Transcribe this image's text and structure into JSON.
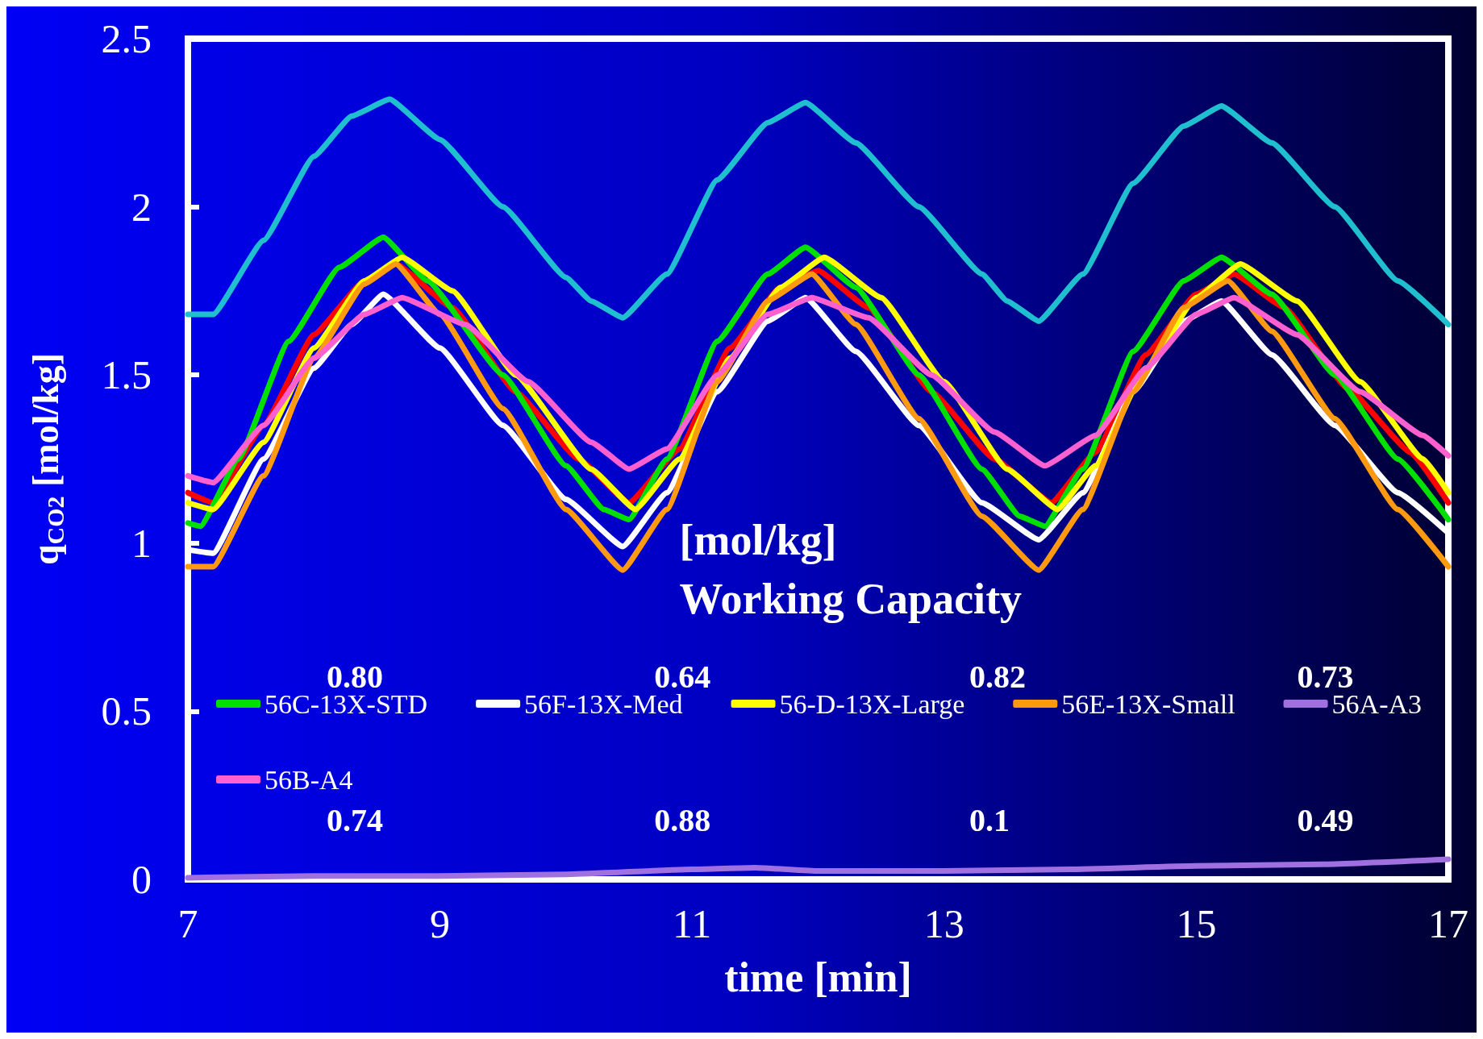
{
  "chart_data": {
    "type": "line",
    "xlabel": "time [min]",
    "ylabel": "q$_{CO2}$ [mol/kg]",
    "xlim": [
      7,
      17
    ],
    "xticks": [
      7,
      9,
      11,
      13,
      15,
      17
    ],
    "ylim": [
      0,
      2.5
    ],
    "yticks": [
      0,
      0.5,
      1,
      1.5,
      2,
      2.5
    ],
    "grid": false,
    "legend": "bottom",
    "marker": "none",
    "line_style": "solid",
    "annotations": [
      "[mol/kg]",
      "Working Capacity",
      "0.80",
      "0.64",
      "0.82",
      "0.73",
      "0.74",
      "0.88",
      "0.1",
      "0.49"
    ],
    "series": [
      {
        "color": "#ff0000",
        "x": [
          7,
          7.2,
          7.6,
          8.0,
          8.4,
          8.65,
          9.1,
          9.6,
          10.1,
          10.5,
          10.9,
          11.3,
          11.7,
          12.0,
          12.4,
          12.9,
          13.4,
          13.85,
          14.2,
          14.6,
          15.0,
          15.3,
          15.7,
          16.2,
          16.7,
          17
        ],
        "values": [
          1.15,
          1.12,
          1.35,
          1.62,
          1.78,
          1.83,
          1.7,
          1.45,
          1.25,
          1.12,
          1.28,
          1.58,
          1.76,
          1.81,
          1.7,
          1.45,
          1.25,
          1.12,
          1.27,
          1.56,
          1.74,
          1.8,
          1.7,
          1.46,
          1.27,
          1.12
        ]
      },
      {
        "color": "#1fbfcf",
        "x": [
          7,
          7.2,
          7.6,
          8.0,
          8.3,
          8.6,
          9.0,
          9.5,
          10.0,
          10.2,
          10.45,
          10.8,
          11.2,
          11.6,
          11.9,
          12.3,
          12.8,
          13.3,
          13.5,
          13.75,
          14.1,
          14.5,
          14.9,
          15.2,
          15.6,
          16.1,
          16.6,
          17
        ],
        "values": [
          1.68,
          1.68,
          1.9,
          2.15,
          2.27,
          2.32,
          2.2,
          2.0,
          1.79,
          1.72,
          1.67,
          1.8,
          2.08,
          2.25,
          2.31,
          2.19,
          2.0,
          1.8,
          1.72,
          1.66,
          1.8,
          2.07,
          2.24,
          2.3,
          2.19,
          2.0,
          1.78,
          1.65
        ]
      },
      {
        "name": "56C-13X-STD",
        "color": "#00e000",
        "x": [
          7,
          7.1,
          7.4,
          7.8,
          8.2,
          8.55,
          8.9,
          9.5,
          10.0,
          10.3,
          10.5,
          10.8,
          11.2,
          11.6,
          11.9,
          12.3,
          12.8,
          13.3,
          13.6,
          13.8,
          14.1,
          14.5,
          14.9,
          15.2,
          15.6,
          16.1,
          16.6,
          17
        ],
        "values": [
          1.06,
          1.05,
          1.25,
          1.6,
          1.82,
          1.91,
          1.78,
          1.5,
          1.23,
          1.1,
          1.07,
          1.25,
          1.6,
          1.8,
          1.88,
          1.76,
          1.5,
          1.22,
          1.08,
          1.05,
          1.22,
          1.57,
          1.78,
          1.85,
          1.74,
          1.5,
          1.25,
          1.07
        ]
      },
      {
        "name": "56F-13X-Med",
        "color": "#ffffff",
        "x": [
          7,
          7.2,
          7.6,
          8.0,
          8.3,
          8.55,
          9.0,
          9.5,
          10.0,
          10.45,
          10.8,
          11.2,
          11.6,
          11.9,
          12.3,
          12.8,
          13.3,
          13.75,
          14.1,
          14.5,
          14.9,
          15.2,
          15.6,
          16.1,
          16.6,
          17
        ],
        "values": [
          0.98,
          0.97,
          1.25,
          1.52,
          1.65,
          1.74,
          1.58,
          1.35,
          1.13,
          0.99,
          1.15,
          1.45,
          1.66,
          1.73,
          1.57,
          1.35,
          1.12,
          1.01,
          1.15,
          1.45,
          1.66,
          1.72,
          1.56,
          1.35,
          1.15,
          1.03
        ]
      },
      {
        "name": "56-D-13X-Large",
        "color": "#ffff00",
        "x": [
          7,
          7.2,
          7.6,
          8.0,
          8.4,
          8.7,
          9.1,
          9.6,
          10.2,
          10.55,
          10.9,
          11.3,
          11.7,
          12.05,
          12.5,
          13.0,
          13.5,
          13.9,
          14.2,
          14.6,
          15.0,
          15.35,
          15.8,
          16.3,
          16.8,
          17
        ],
        "values": [
          1.12,
          1.1,
          1.3,
          1.58,
          1.78,
          1.85,
          1.75,
          1.5,
          1.22,
          1.1,
          1.25,
          1.55,
          1.76,
          1.85,
          1.73,
          1.48,
          1.22,
          1.1,
          1.23,
          1.52,
          1.73,
          1.83,
          1.72,
          1.48,
          1.25,
          1.15
        ]
      },
      {
        "name": "56E-13X-Small",
        "color": "#ff9a10",
        "x": [
          7,
          7.2,
          7.6,
          8.0,
          8.4,
          8.65,
          9.0,
          9.5,
          10.0,
          10.45,
          10.8,
          11.2,
          11.6,
          11.95,
          12.3,
          12.8,
          13.3,
          13.75,
          14.1,
          14.5,
          14.9,
          15.25,
          15.6,
          16.1,
          16.6,
          17
        ],
        "values": [
          0.93,
          0.93,
          1.2,
          1.55,
          1.77,
          1.83,
          1.68,
          1.4,
          1.1,
          0.92,
          1.1,
          1.48,
          1.72,
          1.8,
          1.65,
          1.37,
          1.08,
          0.92,
          1.1,
          1.45,
          1.7,
          1.78,
          1.63,
          1.37,
          1.1,
          0.93
        ]
      },
      {
        "name": "56A-A3",
        "color": "#a070e0",
        "x": [
          7,
          8,
          9,
          10,
          11,
          11.5,
          12,
          13,
          14,
          15,
          16,
          17
        ],
        "values": [
          0.005,
          0.01,
          0.01,
          0.015,
          0.03,
          0.035,
          0.025,
          0.025,
          0.03,
          0.04,
          0.045,
          0.06
        ]
      },
      {
        "name": "56B-A4",
        "color": "#ff60d0",
        "x": [
          7,
          7.2,
          7.6,
          8.0,
          8.4,
          8.7,
          9.2,
          9.7,
          10.2,
          10.5,
          10.8,
          11.2,
          11.6,
          11.95,
          12.4,
          12.9,
          13.4,
          13.8,
          14.2,
          14.6,
          15.0,
          15.3,
          15.8,
          16.3,
          16.8,
          17
        ],
        "values": [
          1.2,
          1.18,
          1.35,
          1.55,
          1.68,
          1.73,
          1.65,
          1.48,
          1.3,
          1.22,
          1.28,
          1.5,
          1.68,
          1.73,
          1.67,
          1.5,
          1.33,
          1.23,
          1.32,
          1.52,
          1.68,
          1.73,
          1.62,
          1.45,
          1.32,
          1.26
        ]
      }
    ]
  }
}
